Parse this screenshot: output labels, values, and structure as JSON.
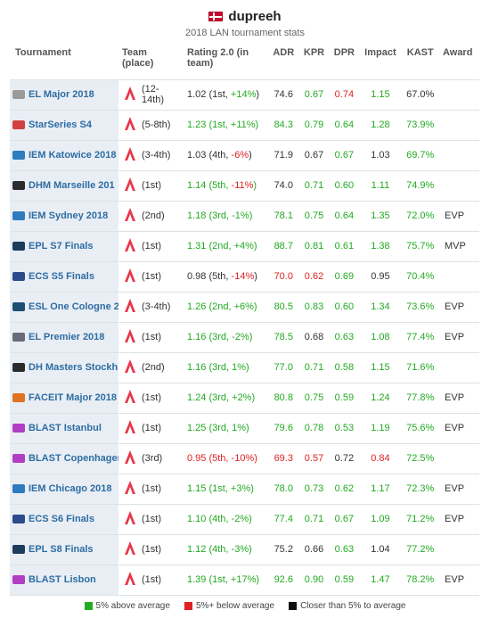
{
  "player": {
    "name": "dupreeh",
    "flag_icon": "denmark-flag-icon"
  },
  "subtitle": "2018 LAN tournament stats",
  "columns": {
    "tournament": "Tournament",
    "team_place": "Team (place)",
    "rating": "Rating 2.0 (in team)",
    "adr": "ADR",
    "kpr": "KPR",
    "dpr": "DPR",
    "impact": "Impact",
    "kast": "KAST",
    "award": "Award"
  },
  "colors": {
    "green": "#22aa22",
    "red": "#dd2222",
    "black": "#333333",
    "link": "#2d6da3"
  },
  "rows": [
    {
      "tournament": "EL Major 2018",
      "icon": "el-major-icon",
      "icon_color": "#9a9a9a",
      "team_icon": "astralis-logo-icon",
      "place": "(12-14th)",
      "rating": "1.02 (1st, ",
      "rating_delta": "+14%",
      "rating_suffix": ")",
      "rating_color": "black",
      "delta_color": "green",
      "adr": "74.6",
      "adr_color": "black",
      "kpr": "0.67",
      "kpr_color": "green",
      "dpr": "0.74",
      "dpr_color": "red",
      "impact": "1.15",
      "impact_color": "green",
      "kast": "67.0%",
      "kast_color": "black",
      "award": ""
    },
    {
      "tournament": "StarSeries S4",
      "icon": "starseries-icon",
      "icon_color": "#d04040",
      "team_icon": "astralis-logo-icon",
      "place": "(5-8th)",
      "rating": "1.23 (1st, ",
      "rating_delta": "+11%",
      "rating_suffix": ")",
      "rating_color": "green",
      "delta_color": "green",
      "adr": "84.3",
      "adr_color": "green",
      "kpr": "0.79",
      "kpr_color": "green",
      "dpr": "0.64",
      "dpr_color": "green",
      "impact": "1.28",
      "impact_color": "green",
      "kast": "73.9%",
      "kast_color": "green",
      "award": ""
    },
    {
      "tournament": "IEM Katowice 2018",
      "icon": "iem-icon",
      "icon_color": "#2f7bc0",
      "team_icon": "astralis-logo-icon",
      "place": "(3-4th)",
      "rating": "1.03 (4th, ",
      "rating_delta": "-6%",
      "rating_suffix": ")",
      "rating_color": "black",
      "delta_color": "red",
      "adr": "71.9",
      "adr_color": "black",
      "kpr": "0.67",
      "kpr_color": "black",
      "dpr": "0.67",
      "dpr_color": "green",
      "impact": "1.03",
      "impact_color": "black",
      "kast": "69.7%",
      "kast_color": "green",
      "award": ""
    },
    {
      "tournament": "DHM Marseille 201",
      "icon": "dreamhack-masters-icon",
      "icon_color": "#2b2b2b",
      "team_icon": "astralis-logo-icon",
      "place": "(1st)",
      "rating": "1.14 (5th, ",
      "rating_delta": "-11%",
      "rating_suffix": ")",
      "rating_color": "green",
      "delta_color": "red",
      "adr": "74.0",
      "adr_color": "black",
      "kpr": "0.71",
      "kpr_color": "green",
      "dpr": "0.60",
      "dpr_color": "green",
      "impact": "1.11",
      "impact_color": "green",
      "kast": "74.9%",
      "kast_color": "green",
      "award": ""
    },
    {
      "tournament": "IEM Sydney 2018",
      "icon": "iem-icon",
      "icon_color": "#2f7bc0",
      "team_icon": "astralis-logo-icon",
      "place": "(2nd)",
      "rating": "1.18 (3rd, -1%)",
      "rating_delta": "",
      "rating_suffix": "",
      "rating_color": "green",
      "delta_color": "black",
      "adr": "78.1",
      "adr_color": "green",
      "kpr": "0.75",
      "kpr_color": "green",
      "dpr": "0.64",
      "dpr_color": "green",
      "impact": "1.35",
      "impact_color": "green",
      "kast": "72.0%",
      "kast_color": "green",
      "award": "EVP"
    },
    {
      "tournament": "EPL S7 Finals",
      "icon": "epl-icon",
      "icon_color": "#1d3b5a",
      "team_icon": "astralis-logo-icon",
      "place": "(1st)",
      "rating": "1.31 (2nd, +4%)",
      "rating_delta": "",
      "rating_suffix": "",
      "rating_color": "green",
      "delta_color": "black",
      "adr": "88.7",
      "adr_color": "green",
      "kpr": "0.81",
      "kpr_color": "green",
      "dpr": "0.61",
      "dpr_color": "green",
      "impact": "1.38",
      "impact_color": "green",
      "kast": "75.7%",
      "kast_color": "green",
      "award": "MVP"
    },
    {
      "tournament": "ECS S5 Finals",
      "icon": "ecs-icon",
      "icon_color": "#2b4b8c",
      "team_icon": "astralis-logo-icon",
      "place": "(1st)",
      "rating": "0.98 (5th, ",
      "rating_delta": "-14%",
      "rating_suffix": ")",
      "rating_color": "black",
      "delta_color": "red",
      "adr": "70.0",
      "adr_color": "red",
      "kpr": "0.62",
      "kpr_color": "red",
      "dpr": "0.69",
      "dpr_color": "green",
      "impact": "0.95",
      "impact_color": "black",
      "kast": "70.4%",
      "kast_color": "green",
      "award": ""
    },
    {
      "tournament": "ESL One Cologne 20",
      "icon": "esl-one-icon",
      "icon_color": "#1e4f72",
      "team_icon": "astralis-logo-icon",
      "place": "(3-4th)",
      "rating": "1.26 (2nd, +6%)",
      "rating_delta": "",
      "rating_suffix": "",
      "rating_color": "green",
      "delta_color": "black",
      "adr": "80.5",
      "adr_color": "green",
      "kpr": "0.83",
      "kpr_color": "green",
      "dpr": "0.60",
      "dpr_color": "green",
      "impact": "1.34",
      "impact_color": "green",
      "kast": "73.6%",
      "kast_color": "green",
      "award": "EVP"
    },
    {
      "tournament": "EL Premier 2018",
      "icon": "el-premier-icon",
      "icon_color": "#6b6b7a",
      "team_icon": "astralis-logo-icon",
      "place": "(1st)",
      "rating": "1.16 (3rd, -2%)",
      "rating_delta": "",
      "rating_suffix": "",
      "rating_color": "green",
      "delta_color": "black",
      "adr": "78.5",
      "adr_color": "green",
      "kpr": "0.68",
      "kpr_color": "black",
      "dpr": "0.63",
      "dpr_color": "green",
      "impact": "1.08",
      "impact_color": "green",
      "kast": "77.4%",
      "kast_color": "green",
      "award": "EVP"
    },
    {
      "tournament": "DH Masters Stockh",
      "icon": "dreamhack-masters-icon",
      "icon_color": "#2b2b2b",
      "team_icon": "astralis-logo-icon",
      "place": "(2nd)",
      "rating": "1.16 (3rd, 1%)",
      "rating_delta": "",
      "rating_suffix": "",
      "rating_color": "green",
      "delta_color": "black",
      "adr": "77.0",
      "adr_color": "green",
      "kpr": "0.71",
      "kpr_color": "green",
      "dpr": "0.58",
      "dpr_color": "green",
      "impact": "1.15",
      "impact_color": "green",
      "kast": "71.6%",
      "kast_color": "green",
      "award": ""
    },
    {
      "tournament": "FACEIT Major 2018",
      "icon": "faceit-icon",
      "icon_color": "#e0731f",
      "team_icon": "astralis-logo-icon",
      "place": "(1st)",
      "rating": "1.24 (3rd, +2%)",
      "rating_delta": "",
      "rating_suffix": "",
      "rating_color": "green",
      "delta_color": "black",
      "adr": "80.8",
      "adr_color": "green",
      "kpr": "0.75",
      "kpr_color": "green",
      "dpr": "0.59",
      "dpr_color": "green",
      "impact": "1.24",
      "impact_color": "green",
      "kast": "77.8%",
      "kast_color": "green",
      "award": "EVP"
    },
    {
      "tournament": "BLAST Istanbul",
      "icon": "blast-icon",
      "icon_color": "#b13fc4",
      "team_icon": "astralis-logo-icon",
      "place": "(1st)",
      "rating": "1.25 (3rd, 1%)",
      "rating_delta": "",
      "rating_suffix": "",
      "rating_color": "green",
      "delta_color": "black",
      "adr": "79.6",
      "adr_color": "green",
      "kpr": "0.78",
      "kpr_color": "green",
      "dpr": "0.53",
      "dpr_color": "green",
      "impact": "1.19",
      "impact_color": "green",
      "kast": "75.6%",
      "kast_color": "green",
      "award": "EVP"
    },
    {
      "tournament": "BLAST Copenhager",
      "icon": "blast-icon",
      "icon_color": "#b13fc4",
      "team_icon": "astralis-logo-icon",
      "place": "(3rd)",
      "rating": "0.95 (5th, -10%)",
      "rating_delta": "",
      "rating_suffix": "",
      "rating_color": "red",
      "delta_color": "red",
      "adr": "69.3",
      "adr_color": "red",
      "kpr": "0.57",
      "kpr_color": "red",
      "dpr": "0.72",
      "dpr_color": "black",
      "impact": "0.84",
      "impact_color": "red",
      "kast": "72.5%",
      "kast_color": "green",
      "award": ""
    },
    {
      "tournament": "IEM Chicago 2018",
      "icon": "iem-icon",
      "icon_color": "#2f7bc0",
      "team_icon": "astralis-logo-icon",
      "place": "(1st)",
      "rating": "1.15 (1st, +3%)",
      "rating_delta": "",
      "rating_suffix": "",
      "rating_color": "green",
      "delta_color": "black",
      "adr": "78.0",
      "adr_color": "green",
      "kpr": "0.73",
      "kpr_color": "green",
      "dpr": "0.62",
      "dpr_color": "green",
      "impact": "1.17",
      "impact_color": "green",
      "kast": "72.3%",
      "kast_color": "green",
      "award": "EVP"
    },
    {
      "tournament": "ECS S6 Finals",
      "icon": "ecs-icon",
      "icon_color": "#2b4b8c",
      "team_icon": "astralis-logo-icon",
      "place": "(1st)",
      "rating": "1.10 (4th, -2%)",
      "rating_delta": "",
      "rating_suffix": "",
      "rating_color": "green",
      "delta_color": "black",
      "adr": "77.4",
      "adr_color": "green",
      "kpr": "0.71",
      "kpr_color": "green",
      "dpr": "0.67",
      "dpr_color": "green",
      "impact": "1.09",
      "impact_color": "green",
      "kast": "71.2%",
      "kast_color": "green",
      "award": "EVP"
    },
    {
      "tournament": "EPL S8 Finals",
      "icon": "epl-icon",
      "icon_color": "#1d3b5a",
      "team_icon": "astralis-logo-icon",
      "place": "(1st)",
      "rating": "1.12 (4th, -3%)",
      "rating_delta": "",
      "rating_suffix": "",
      "rating_color": "green",
      "delta_color": "black",
      "adr": "75.2",
      "adr_color": "black",
      "kpr": "0.66",
      "kpr_color": "black",
      "dpr": "0.63",
      "dpr_color": "green",
      "impact": "1.04",
      "impact_color": "black",
      "kast": "77.2%",
      "kast_color": "green",
      "award": ""
    },
    {
      "tournament": "BLAST Lisbon",
      "icon": "blast-icon",
      "icon_color": "#b13fc4",
      "team_icon": "astralis-logo-icon",
      "place": "(1st)",
      "rating": "1.39 (1st, ",
      "rating_delta": "+17%",
      "rating_suffix": ")",
      "rating_color": "green",
      "delta_color": "green",
      "adr": "92.6",
      "adr_color": "green",
      "kpr": "0.90",
      "kpr_color": "green",
      "dpr": "0.59",
      "dpr_color": "green",
      "impact": "1.47",
      "impact_color": "green",
      "kast": "78.2%",
      "kast_color": "green",
      "award": "EVP"
    }
  ],
  "legend": [
    {
      "label": "5% above average",
      "color": "#22aa22"
    },
    {
      "label": "5%+ below average",
      "color": "#dd2222"
    },
    {
      "label": "Closer than 5% to average",
      "color": "#111111"
    }
  ]
}
